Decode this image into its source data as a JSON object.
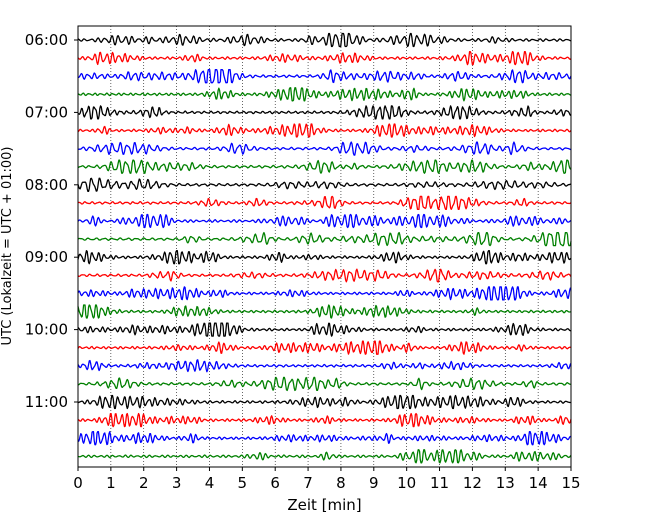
{
  "chart_data": {
    "type": "line",
    "xlabel": "Zeit  [min]",
    "ylabel": "UTC (Lokalzeit = UTC + 01:00)",
    "xlim": [
      0,
      15
    ],
    "xticks": [
      0,
      1,
      2,
      3,
      4,
      5,
      6,
      7,
      8,
      9,
      10,
      11,
      12,
      13,
      14,
      15
    ],
    "ytick_labels": [
      "06:00",
      "07:00",
      "08:00",
      "09:00",
      "10:00",
      "11:00"
    ],
    "start_time": "06:00",
    "trace_interval_min": 15,
    "trace_count": 24,
    "trace_colors": [
      "#000000",
      "#ff0000",
      "#0000ff",
      "#008000"
    ],
    "grid_x": true,
    "grid_style": "dotted"
  }
}
